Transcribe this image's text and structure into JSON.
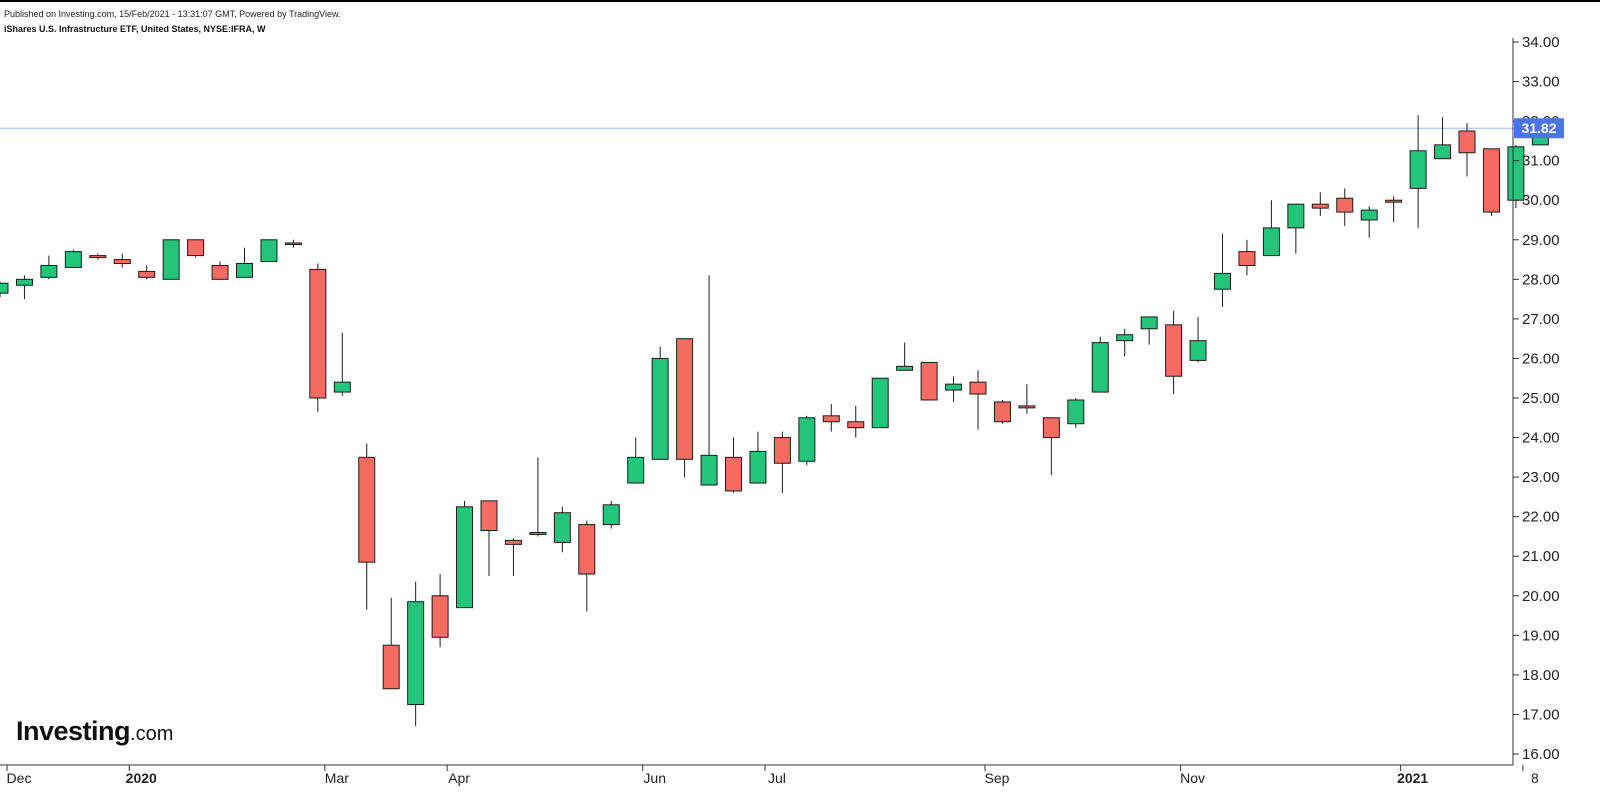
{
  "header": {
    "published": "Published on Investing.com, 15/Feb/2021 - 13:31:07 GMT, Powered by TradingView.",
    "symbol": "iShares U.S. Infrastructure ETF, United States, NYSE:IFRA, W"
  },
  "logo": {
    "brand": "Investing",
    "suffix": ".com"
  },
  "colors": {
    "up": "#22c57a",
    "down": "#f46b61",
    "outline": "#1c1c1c",
    "price_line": "#9fb6f5",
    "price_badge": "#4a75e8"
  },
  "chart_data": {
    "type": "candlestick",
    "timeframe": "W",
    "y_ticks": [
      "16.00",
      "17.00",
      "18.00",
      "19.00",
      "20.00",
      "21.00",
      "22.00",
      "23.00",
      "24.00",
      "25.00",
      "26.00",
      "27.00",
      "28.00",
      "29.00",
      "30.00",
      "31.00",
      "32.00",
      "33.00",
      "34.00"
    ],
    "ylim": [
      16.0,
      34.0
    ],
    "x_ticks": [
      {
        "label": "Dec",
        "index": 0,
        "bold": false
      },
      {
        "label": "2020",
        "index": 5,
        "bold": true
      },
      {
        "label": "Mar",
        "index": 13,
        "bold": false
      },
      {
        "label": "Apr",
        "index": 18,
        "bold": false
      },
      {
        "label": "Jun",
        "index": 26,
        "bold": false
      },
      {
        "label": "Jul",
        "index": 31,
        "bold": false
      },
      {
        "label": "Sep",
        "index": 40,
        "bold": false
      },
      {
        "label": "Nov",
        "index": 48,
        "bold": false
      },
      {
        "label": "2021",
        "index": 57,
        "bold": true
      },
      {
        "label": "8",
        "index": 62,
        "bold": false
      }
    ],
    "last_price": "31.82",
    "last_price_value": 31.82,
    "candles": [
      {
        "o": 27.65,
        "h": 27.95,
        "l": 27.55,
        "c": 27.9
      },
      {
        "o": 27.85,
        "h": 28.1,
        "l": 27.5,
        "c": 28.0
      },
      {
        "o": 28.05,
        "h": 28.6,
        "l": 28.0,
        "c": 28.35
      },
      {
        "o": 28.3,
        "h": 28.75,
        "l": 28.3,
        "c": 28.7
      },
      {
        "o": 28.6,
        "h": 28.65,
        "l": 28.5,
        "c": 28.55
      },
      {
        "o": 28.5,
        "h": 28.65,
        "l": 28.3,
        "c": 28.4
      },
      {
        "o": 28.2,
        "h": 28.35,
        "l": 28.0,
        "c": 28.05
      },
      {
        "o": 28.0,
        "h": 29.0,
        "l": 28.0,
        "c": 29.0
      },
      {
        "o": 29.0,
        "h": 29.0,
        "l": 28.55,
        "c": 28.6
      },
      {
        "o": 28.35,
        "h": 28.45,
        "l": 28.0,
        "c": 28.0
      },
      {
        "o": 28.05,
        "h": 28.8,
        "l": 28.05,
        "c": 28.4
      },
      {
        "o": 28.45,
        "h": 29.0,
        "l": 28.45,
        "c": 29.0
      },
      {
        "o": 28.92,
        "h": 29.0,
        "l": 28.8,
        "c": 28.88
      },
      {
        "o": 28.25,
        "h": 28.4,
        "l": 24.65,
        "c": 25.0
      },
      {
        "o": 25.15,
        "h": 26.65,
        "l": 25.05,
        "c": 25.4
      },
      {
        "o": 23.5,
        "h": 23.85,
        "l": 19.65,
        "c": 20.85
      },
      {
        "o": 18.75,
        "h": 19.95,
        "l": 17.65,
        "c": 17.65
      },
      {
        "o": 17.25,
        "h": 20.35,
        "l": 16.7,
        "c": 19.85
      },
      {
        "o": 20.0,
        "h": 20.55,
        "l": 18.7,
        "c": 18.95
      },
      {
        "o": 19.7,
        "h": 22.4,
        "l": 19.7,
        "c": 22.25
      },
      {
        "o": 22.4,
        "h": 22.4,
        "l": 20.5,
        "c": 21.65
      },
      {
        "o": 21.4,
        "h": 21.45,
        "l": 20.5,
        "c": 21.3
      },
      {
        "o": 21.55,
        "h": 23.5,
        "l": 21.5,
        "c": 21.6
      },
      {
        "o": 21.35,
        "h": 22.25,
        "l": 21.1,
        "c": 22.1
      },
      {
        "o": 21.8,
        "h": 21.9,
        "l": 19.6,
        "c": 20.55
      },
      {
        "o": 21.8,
        "h": 22.4,
        "l": 21.7,
        "c": 22.3
      },
      {
        "o": 22.85,
        "h": 24.0,
        "l": 22.85,
        "c": 23.5
      },
      {
        "o": 23.45,
        "h": 26.3,
        "l": 23.45,
        "c": 26.0
      },
      {
        "o": 26.5,
        "h": 26.5,
        "l": 23.0,
        "c": 23.45
      },
      {
        "o": 22.8,
        "h": 28.1,
        "l": 22.8,
        "c": 23.55
      },
      {
        "o": 23.5,
        "h": 24.0,
        "l": 22.6,
        "c": 22.65
      },
      {
        "o": 22.85,
        "h": 24.15,
        "l": 22.85,
        "c": 23.65
      },
      {
        "o": 24.0,
        "h": 24.15,
        "l": 22.6,
        "c": 23.35
      },
      {
        "o": 23.4,
        "h": 24.55,
        "l": 23.3,
        "c": 24.5
      },
      {
        "o": 24.55,
        "h": 24.85,
        "l": 24.15,
        "c": 24.4
      },
      {
        "o": 24.4,
        "h": 24.8,
        "l": 24.0,
        "c": 24.25
      },
      {
        "o": 24.25,
        "h": 25.5,
        "l": 24.25,
        "c": 25.5
      },
      {
        "o": 25.7,
        "h": 26.4,
        "l": 25.7,
        "c": 25.8
      },
      {
        "o": 25.9,
        "h": 25.9,
        "l": 24.95,
        "c": 24.95
      },
      {
        "o": 25.2,
        "h": 25.55,
        "l": 24.9,
        "c": 25.35
      },
      {
        "o": 25.4,
        "h": 25.7,
        "l": 24.2,
        "c": 25.1
      },
      {
        "o": 24.9,
        "h": 24.95,
        "l": 24.35,
        "c": 24.4
      },
      {
        "o": 24.8,
        "h": 25.35,
        "l": 24.6,
        "c": 24.75
      },
      {
        "o": 24.5,
        "h": 24.5,
        "l": 23.05,
        "c": 24.0
      },
      {
        "o": 24.35,
        "h": 25.0,
        "l": 24.25,
        "c": 24.95
      },
      {
        "o": 25.15,
        "h": 26.55,
        "l": 25.15,
        "c": 26.4
      },
      {
        "o": 26.45,
        "h": 26.75,
        "l": 26.05,
        "c": 26.6
      },
      {
        "o": 26.75,
        "h": 27.05,
        "l": 26.35,
        "c": 27.05
      },
      {
        "o": 26.85,
        "h": 27.2,
        "l": 25.1,
        "c": 25.55
      },
      {
        "o": 25.95,
        "h": 27.05,
        "l": 25.9,
        "c": 26.45
      },
      {
        "o": 27.75,
        "h": 29.15,
        "l": 27.3,
        "c": 28.15
      },
      {
        "o": 28.7,
        "h": 29.0,
        "l": 28.1,
        "c": 28.35
      },
      {
        "o": 28.6,
        "h": 30.0,
        "l": 28.6,
        "c": 29.3
      },
      {
        "o": 29.3,
        "h": 29.9,
        "l": 28.65,
        "c": 29.9
      },
      {
        "o": 29.9,
        "h": 30.2,
        "l": 29.6,
        "c": 29.8
      },
      {
        "o": 30.05,
        "h": 30.3,
        "l": 29.35,
        "c": 29.7
      },
      {
        "o": 29.5,
        "h": 29.85,
        "l": 29.05,
        "c": 29.75
      },
      {
        "o": 30.0,
        "h": 30.1,
        "l": 29.45,
        "c": 29.95
      },
      {
        "o": 30.3,
        "h": 32.15,
        "l": 29.3,
        "c": 31.25
      },
      {
        "o": 31.05,
        "h": 32.1,
        "l": 31.05,
        "c": 31.4
      },
      {
        "o": 31.75,
        "h": 31.95,
        "l": 30.6,
        "c": 31.2
      },
      {
        "o": 31.3,
        "h": 31.3,
        "l": 29.6,
        "c": 29.7
      },
      {
        "o": 30.0,
        "h": 31.4,
        "l": 29.8,
        "c": 31.35
      },
      {
        "o": 31.4,
        "h": 31.95,
        "l": 31.4,
        "c": 31.82
      }
    ]
  }
}
